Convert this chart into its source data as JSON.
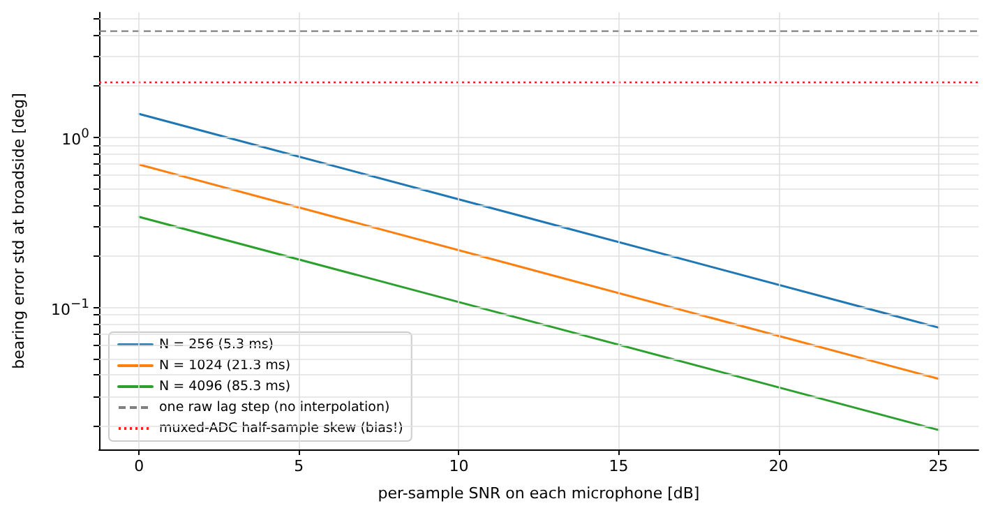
{
  "chart_data": {
    "type": "line",
    "xlabel": "per-sample SNR on each microphone [dB]",
    "ylabel": "bearing error std at broadside [deg]",
    "x": [
      0,
      25
    ],
    "series": [
      {
        "name": "N = 256 (5.3 ms)",
        "color": "#1f77b4",
        "values": [
          1.37,
          0.076
        ]
      },
      {
        "name": "N = 1024 (21.3 ms)",
        "color": "#ff7f0e",
        "values": [
          0.69,
          0.038
        ]
      },
      {
        "name": "N = 4096 (85.3 ms)",
        "color": "#2ca02c",
        "values": [
          0.34,
          0.019
        ]
      }
    ],
    "ref_lines": [
      {
        "axis": "y",
        "value": 4.2,
        "label": "one raw lag step (no interpolation)",
        "color": "#808080",
        "line_style": "dashed"
      },
      {
        "axis": "y",
        "value": 2.1,
        "label": "muxed-ADC half-sample skew (bias!)",
        "color": "#ff2020",
        "line_style": "dotted"
      }
    ],
    "log": "y",
    "xlim": [
      -1.25,
      26.25
    ],
    "ylim": [
      0.0146,
      5.4
    ],
    "xticks": [
      0,
      5,
      10,
      15,
      20,
      25
    ],
    "yticks": [
      {
        "value": 0.02,
        "label": null
      },
      {
        "value": 0.03,
        "label": null
      },
      {
        "value": 0.04,
        "label": null
      },
      {
        "value": 0.05,
        "label": null
      },
      {
        "value": 0.06,
        "label": null
      },
      {
        "value": 0.07,
        "label": null
      },
      {
        "value": 0.08,
        "label": null
      },
      {
        "value": 0.09,
        "label": null
      },
      {
        "value": 0.1,
        "label": "10$^{−1}$"
      },
      {
        "value": 0.2,
        "label": null
      },
      {
        "value": 0.3,
        "label": null
      },
      {
        "value": 0.4,
        "label": null
      },
      {
        "value": 0.5,
        "label": null
      },
      {
        "value": 0.6,
        "label": null
      },
      {
        "value": 0.7,
        "label": null
      },
      {
        "value": 0.8,
        "label": null
      },
      {
        "value": 0.9,
        "label": null
      },
      {
        "value": 1,
        "label": "10$^{0}$"
      },
      {
        "value": 2,
        "label": null
      },
      {
        "value": 3,
        "label": null
      },
      {
        "value": 4,
        "label": null
      },
      {
        "value": 5,
        "label": null
      }
    ],
    "grid": true,
    "legend": "lower left",
    "marker": "none",
    "line_style": "solid"
  }
}
